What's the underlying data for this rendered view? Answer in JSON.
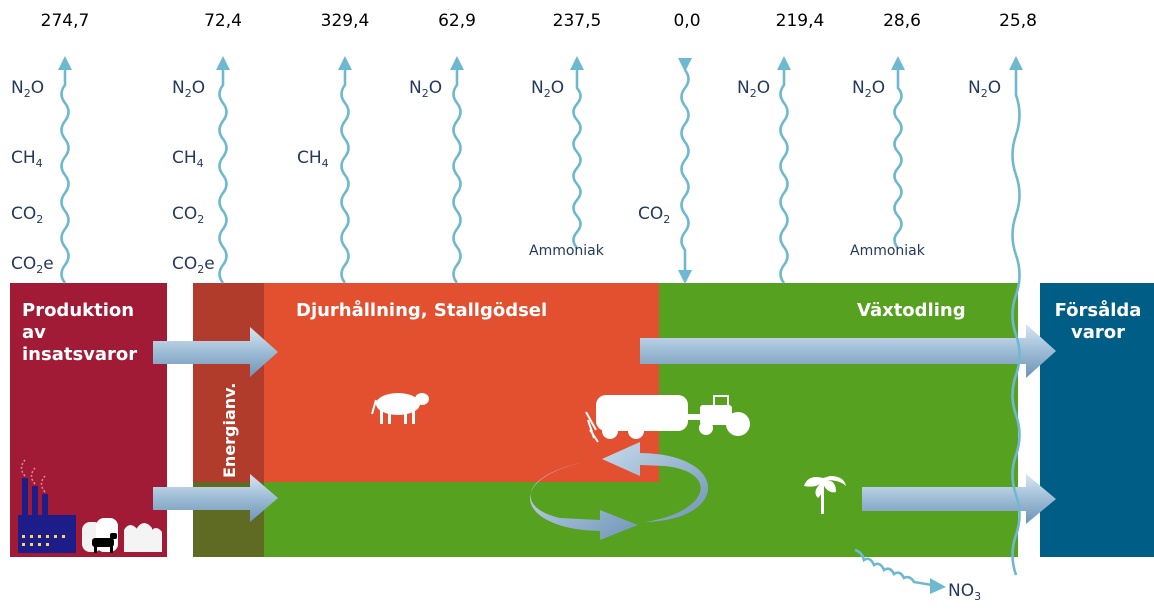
{
  "values": [
    "274,7",
    "72,4",
    "329,4",
    "62,9",
    "237,5",
    "0,0",
    "219,4",
    "28,6",
    "25,8"
  ],
  "gas_labels": {
    "n2o": {
      "base": "N",
      "sub": "2",
      "tail": "O"
    },
    "ch4": {
      "base": "CH",
      "sub": "4",
      "tail": ""
    },
    "co2": {
      "base": "CO",
      "sub": "2",
      "tail": ""
    },
    "co2e": {
      "base": "CO",
      "sub": "2",
      "tail": "e"
    },
    "no3": {
      "base": "NO",
      "sub": "3",
      "tail": ""
    }
  },
  "annotations": {
    "ammoniak_left": "Ammoniak",
    "ammoniak_right": "Ammoniak"
  },
  "boxes": {
    "production": [
      "Produktion",
      "av",
      "insatsvaror"
    ],
    "energy": "Energianv.",
    "animal": "Djurhållning, Stallgödsel",
    "crop": "Växtodling",
    "sold": [
      "Försålda",
      "varor"
    ]
  },
  "colors": {
    "production": "#a11a36",
    "energy_top": "#b23c2c",
    "energy_bottom": "#5f6a22",
    "animal": "#e2502f",
    "crop": "#56a11f",
    "sold": "#005d86",
    "wave": "#6fb9d0",
    "arrow": "#8fb3cf"
  },
  "icons": [
    "factory-icon",
    "cow-icon",
    "bales-icon",
    "sacks-icon",
    "cow-icon",
    "tractor-icon",
    "plant-icon"
  ]
}
